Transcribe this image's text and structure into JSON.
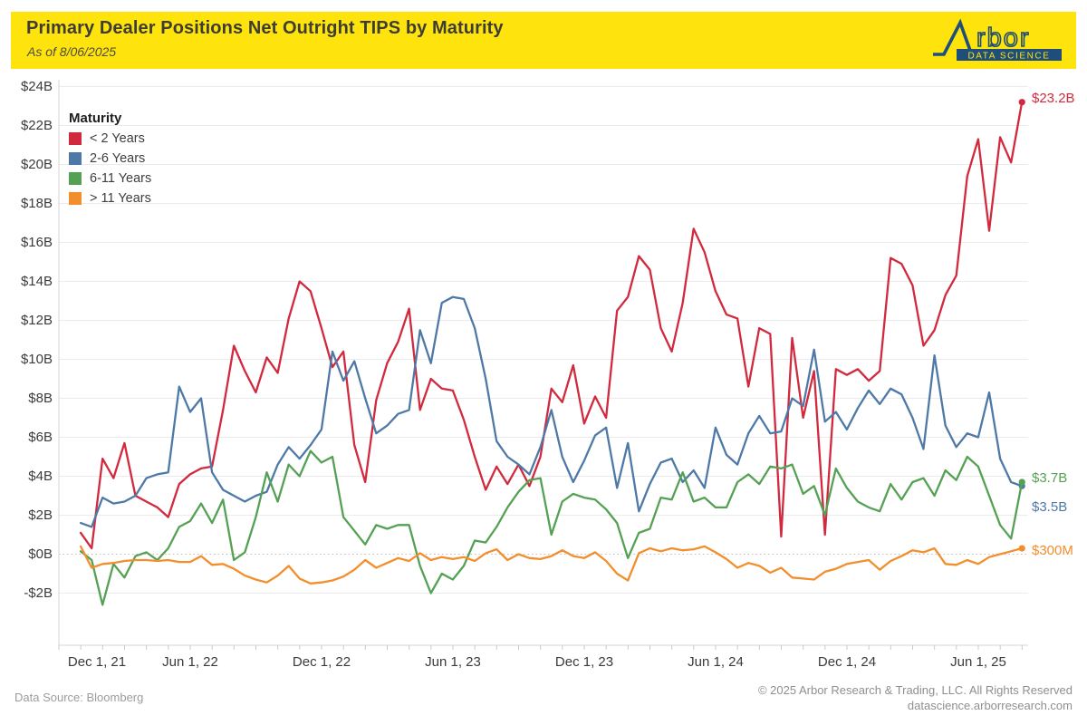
{
  "header": {
    "title": "Primary Dealer Positions Net Outright TIPS by Maturity",
    "as_of": "As of 8/06/2025",
    "logo_brand": "Arbor",
    "logo_tagline": "DATA SCIENCE"
  },
  "legend": {
    "title": "Maturity"
  },
  "footer": {
    "source": "Data Source: Bloomberg",
    "copyright": "© 2025 Arbor Research & Trading, LLC. All Rights Reserved",
    "website": "datascience.arborresearch.com"
  },
  "colors": {
    "header_background": "#ffe30c",
    "logo_navy": "#1e4e79",
    "red": "#d1293e",
    "blue": "#4e79a7",
    "green": "#55a154",
    "orange": "#f28e2b",
    "gridline": "#ebebeb",
    "zero_line": "#bdbdbd"
  },
  "chart_data": {
    "type": "line",
    "title": "Primary Dealer Positions Net Outright TIPS by Maturity",
    "subtitle": "As of 8/06/2025",
    "xlabel": "",
    "ylabel": "",
    "y_unit": "USD billions",
    "ylim": [
      -3.5,
      24.8
    ],
    "grid": "horizontal",
    "legend_position": "top-left",
    "date_range": [
      "2021-12-29",
      "2025-08-06"
    ],
    "x_unit": "decimal_year",
    "x_start": 2022.0,
    "x_step": 0.0416667,
    "point_count": 87,
    "y_axis": {
      "ticks": [
        {
          "value": 24,
          "label": "$24B"
        },
        {
          "value": 22,
          "label": "$22B"
        },
        {
          "value": 20,
          "label": "$20B"
        },
        {
          "value": 18,
          "label": "$18B"
        },
        {
          "value": 16,
          "label": "$16B"
        },
        {
          "value": 14,
          "label": "$14B"
        },
        {
          "value": 12,
          "label": "$12B"
        },
        {
          "value": 10,
          "label": "$10B"
        },
        {
          "value": 8,
          "label": "$8B"
        },
        {
          "value": 6,
          "label": "$6B"
        },
        {
          "value": 4,
          "label": "$4B"
        },
        {
          "value": 2,
          "label": "$2B"
        },
        {
          "value": 0,
          "label": "$0B"
        },
        {
          "value": -2,
          "label": "-$2B"
        }
      ]
    },
    "x_axis": {
      "minor_tick_interval_months": 1,
      "ticks": [
        {
          "t": 2021.917,
          "label": "Dec 1, 21"
        },
        {
          "t": 2022.417,
          "label": "Jun 1, 22"
        },
        {
          "t": 2022.917,
          "label": "Dec 1, 22"
        },
        {
          "t": 2023.417,
          "label": "Jun 1, 23"
        },
        {
          "t": 2023.917,
          "label": "Dec 1, 23"
        },
        {
          "t": 2024.417,
          "label": "Jun 1, 24"
        },
        {
          "t": 2024.917,
          "label": "Dec 1, 24"
        },
        {
          "t": 2025.417,
          "label": "Jun 1, 25"
        }
      ]
    },
    "series": [
      {
        "id": "lt2y",
        "name": "< 2 Years",
        "color": "#d1293e",
        "end_label": "$23.2B",
        "values": [
          1.1,
          0.3,
          4.9,
          3.9,
          5.7,
          3.0,
          2.7,
          2.4,
          1.9,
          3.6,
          4.1,
          4.4,
          4.5,
          7.4,
          10.7,
          9.4,
          8.3,
          10.1,
          9.3,
          12.1,
          14.0,
          13.5,
          11.6,
          9.6,
          10.4,
          5.6,
          3.7,
          7.9,
          9.8,
          10.9,
          12.6,
          7.4,
          9.0,
          8.5,
          8.4,
          6.9,
          5.0,
          3.3,
          4.5,
          3.6,
          4.6,
          3.5,
          5.0,
          8.5,
          7.8,
          9.7,
          6.7,
          8.1,
          7.0,
          12.5,
          13.2,
          15.3,
          14.6,
          11.6,
          10.4,
          12.9,
          16.7,
          15.5,
          13.5,
          12.3,
          12.1,
          8.6,
          11.6,
          11.3,
          0.9,
          11.1,
          7.0,
          9.4,
          1.0,
          9.5,
          9.2,
          9.5,
          8.9,
          9.4,
          15.2,
          14.9,
          13.8,
          10.7,
          11.5,
          13.3,
          14.3,
          19.4,
          21.3,
          16.6,
          21.4,
          20.1,
          23.2
        ]
      },
      {
        "id": "y2to6",
        "name": "2-6 Years",
        "color": "#4e79a7",
        "end_label": "$3.5B",
        "values": [
          1.6,
          1.4,
          2.9,
          2.6,
          2.7,
          3.0,
          3.9,
          4.1,
          4.2,
          8.6,
          7.3,
          8.0,
          4.2,
          3.3,
          3.0,
          2.7,
          3.0,
          3.2,
          4.6,
          5.5,
          4.9,
          5.6,
          6.4,
          10.4,
          8.9,
          9.9,
          8.0,
          6.2,
          6.6,
          7.2,
          7.4,
          11.5,
          9.8,
          12.9,
          13.2,
          13.1,
          11.6,
          9.0,
          5.8,
          5.0,
          4.6,
          4.1,
          5.5,
          7.4,
          5.0,
          3.7,
          4.8,
          6.1,
          6.5,
          3.4,
          5.7,
          2.2,
          3.6,
          4.7,
          4.9,
          3.7,
          4.3,
          3.4,
          6.5,
          5.1,
          4.6,
          6.2,
          7.1,
          6.2,
          6.3,
          8.0,
          7.6,
          10.5,
          6.8,
          7.3,
          6.4,
          7.5,
          8.4,
          7.7,
          8.5,
          8.2,
          7.0,
          5.4,
          10.2,
          6.6,
          5.5,
          6.2,
          6.0,
          8.3,
          4.9,
          3.7,
          3.5
        ]
      },
      {
        "id": "y6to11",
        "name": "6-11 Years",
        "color": "#55a154",
        "end_label": "$3.7B",
        "values": [
          0.15,
          -0.3,
          -2.6,
          -0.5,
          -1.2,
          -0.1,
          0.1,
          -0.3,
          0.3,
          1.4,
          1.7,
          2.6,
          1.6,
          2.8,
          -0.3,
          0.1,
          1.9,
          4.2,
          2.7,
          4.6,
          4.0,
          5.3,
          4.7,
          5.0,
          1.9,
          1.2,
          0.5,
          1.5,
          1.3,
          1.5,
          1.5,
          -0.6,
          -2.0,
          -1.0,
          -1.3,
          -0.6,
          0.7,
          0.6,
          1.4,
          2.4,
          3.2,
          3.8,
          3.9,
          1.0,
          2.7,
          3.1,
          2.9,
          2.8,
          2.3,
          1.6,
          -0.2,
          1.1,
          1.3,
          2.9,
          2.8,
          4.2,
          2.7,
          2.9,
          2.4,
          2.4,
          3.7,
          4.1,
          3.6,
          4.5,
          4.4,
          4.6,
          3.1,
          3.5,
          2.0,
          4.4,
          3.4,
          2.7,
          2.4,
          2.2,
          3.6,
          2.8,
          3.7,
          3.9,
          3.0,
          4.3,
          3.8,
          5.0,
          4.5,
          3.0,
          1.5,
          0.8,
          3.7
        ]
      },
      {
        "id": "gt11y",
        "name": "> 11 Years",
        "color": "#f28e2b",
        "end_label": "$300M",
        "values": [
          0.4,
          -0.7,
          -0.5,
          -0.45,
          -0.35,
          -0.3,
          -0.3,
          -0.35,
          -0.3,
          -0.4,
          -0.4,
          -0.1,
          -0.55,
          -0.5,
          -0.75,
          -1.1,
          -1.3,
          -1.45,
          -1.1,
          -0.6,
          -1.25,
          -1.5,
          -1.45,
          -1.35,
          -1.15,
          -0.8,
          -0.3,
          -0.7,
          -0.45,
          -0.2,
          -0.35,
          0.05,
          -0.3,
          -0.15,
          -0.25,
          -0.15,
          -0.35,
          0.05,
          0.25,
          -0.3,
          0.0,
          -0.2,
          -0.25,
          -0.1,
          0.2,
          -0.1,
          -0.2,
          0.1,
          -0.35,
          -1.0,
          -1.35,
          0.05,
          0.3,
          0.15,
          0.3,
          0.2,
          0.25,
          0.4,
          0.1,
          -0.25,
          -0.7,
          -0.45,
          -0.6,
          -0.95,
          -0.7,
          -1.2,
          -1.25,
          -1.3,
          -0.9,
          -0.75,
          -0.5,
          -0.4,
          -0.3,
          -0.8,
          -0.35,
          -0.1,
          0.2,
          0.1,
          0.3,
          -0.5,
          -0.55,
          -0.3,
          -0.5,
          -0.15,
          0.0,
          0.15,
          0.3
        ]
      }
    ]
  }
}
